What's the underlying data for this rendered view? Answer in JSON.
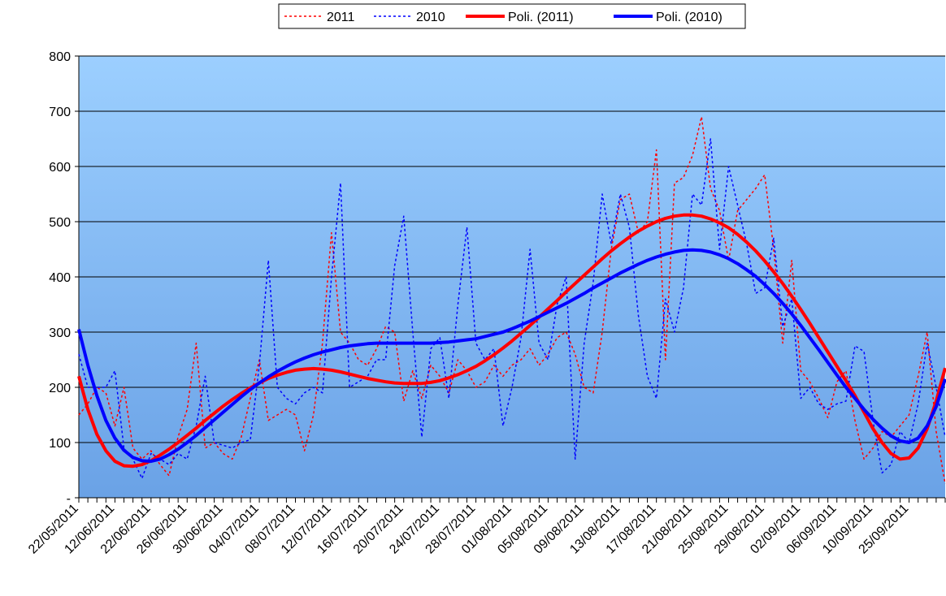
{
  "chart_data": {
    "type": "line",
    "categories": [
      "22/05/2011",
      null,
      null,
      null,
      "12/06/2011",
      null,
      null,
      null,
      "22/06/2011",
      null,
      null,
      null,
      "26/06/2011",
      null,
      null,
      null,
      "30/06/2011",
      null,
      null,
      null,
      "04/07/2011",
      null,
      null,
      null,
      "08/07/2011",
      null,
      null,
      null,
      "12/07/2011",
      null,
      null,
      null,
      "16/07/2011",
      null,
      null,
      null,
      "20/07/2011",
      null,
      null,
      null,
      "24/07/2011",
      null,
      null,
      null,
      "28/07/2011",
      null,
      null,
      null,
      "01/08/2011",
      null,
      null,
      null,
      "05/08/2011",
      null,
      null,
      null,
      "09/08/2011",
      null,
      null,
      null,
      "13/08/2011",
      null,
      null,
      null,
      "17/08/2011",
      null,
      null,
      null,
      "21/08/2011",
      null,
      null,
      null,
      "25/08/2011",
      null,
      null,
      null,
      "29/08/2011",
      null,
      null,
      null,
      "02/09/2011",
      null,
      null,
      null,
      "06/09/2011",
      null,
      null,
      null,
      "10/09/2011",
      null,
      null,
      null,
      "25/09/2011",
      null,
      null,
      null,
      null
    ],
    "series": [
      {
        "name": "2011",
        "color": "#ff0000",
        "line_style": "dotted",
        "values": [
          150,
          170,
          200,
          190,
          130,
          200,
          90,
          70,
          85,
          60,
          40,
          110,
          160,
          280,
          90,
          100,
          80,
          70,
          110,
          180,
          250,
          140,
          150,
          160,
          150,
          85,
          150,
          280,
          480,
          300,
          280,
          250,
          240,
          270,
          310,
          300,
          175,
          230,
          180,
          240,
          220,
          190,
          250,
          230,
          200,
          210,
          240,
          220,
          240,
          250,
          270,
          240,
          260,
          290,
          300,
          260,
          200,
          190,
          300,
          450,
          540,
          550,
          480,
          500,
          630,
          250,
          570,
          580,
          620,
          690,
          560,
          520,
          430,
          520,
          540,
          560,
          585,
          450,
          280,
          430,
          230,
          210,
          180,
          145,
          210,
          230,
          140,
          70,
          90,
          120,
          110,
          130,
          150,
          220,
          300,
          120,
          25
        ]
      },
      {
        "name": "2010",
        "color": "#0000ff",
        "line_style": "dotted",
        "values": [
          260,
          200,
          200,
          200,
          230,
          90,
          70,
          35,
          80,
          70,
          60,
          80,
          70,
          130,
          220,
          100,
          95,
          90,
          100,
          105,
          240,
          430,
          200,
          180,
          170,
          190,
          200,
          190,
          400,
          570,
          200,
          210,
          220,
          250,
          250,
          420,
          510,
          300,
          110,
          270,
          290,
          180,
          350,
          490,
          280,
          250,
          270,
          130,
          200,
          290,
          450,
          280,
          250,
          350,
          400,
          70,
          280,
          390,
          550,
          460,
          550,
          490,
          330,
          220,
          180,
          360,
          300,
          380,
          550,
          530,
          650,
          450,
          600,
          530,
          460,
          370,
          380,
          470,
          310,
          360,
          180,
          200,
          170,
          160,
          170,
          175,
          275,
          265,
          140,
          45,
          60,
          120,
          100,
          170,
          280,
          200,
          110
        ]
      },
      {
        "name": "Poli. (2011)",
        "color": "#ff0000",
        "line_style": "solid",
        "values": [
          220,
          160,
          115,
          85,
          66,
          58,
          57,
          60,
          67,
          77,
          88,
          100,
          113,
          126,
          140,
          153,
          166,
          178,
          189,
          199,
          208,
          216,
          222,
          227,
          231,
          233,
          234,
          233,
          231,
          228,
          224,
          220,
          216,
          213,
          210,
          208,
          207,
          207,
          207,
          209,
          212,
          217,
          223,
          230,
          238,
          248,
          259,
          271,
          284,
          298,
          312,
          327,
          342,
          357,
          373,
          388,
          403,
          418,
          433,
          447,
          460,
          472,
          483,
          492,
          500,
          506,
          510,
          512,
          512,
          510,
          505,
          498,
          489,
          477,
          463,
          447,
          429,
          409,
          388,
          365,
          341,
          316,
          290,
          264,
          238,
          212,
          185,
          155,
          125,
          100,
          80,
          70,
          72,
          90,
          125,
          175,
          235
        ]
      },
      {
        "name": "Poli. (2010)",
        "color": "#0000ff",
        "line_style": "solid",
        "values": [
          305,
          240,
          185,
          140,
          108,
          86,
          73,
          67,
          66,
          70,
          78,
          88,
          100,
          113,
          127,
          141,
          155,
          169,
          183,
          196,
          208,
          219,
          229,
          238,
          246,
          253,
          259,
          264,
          268,
          272,
          275,
          277,
          279,
          280,
          280,
          280,
          280,
          280,
          280,
          280,
          281,
          282,
          284,
          286,
          288,
          292,
          296,
          300,
          306,
          313,
          320,
          328,
          336,
          344,
          352,
          361,
          370,
          380,
          389,
          398,
          407,
          415,
          423,
          430,
          436,
          441,
          445,
          448,
          449,
          448,
          445,
          440,
          433,
          424,
          413,
          401,
          386,
          370,
          352,
          333,
          312,
          290,
          268,
          245,
          222,
          200,
          180,
          160,
          142,
          126,
          112,
          103,
          100,
          108,
          130,
          165,
          215
        ]
      }
    ],
    "ylim": [
      0,
      800
    ],
    "yticks": [
      {
        "value": 0,
        "label": "-"
      },
      100,
      200,
      300,
      400,
      500,
      600,
      700,
      800
    ],
    "grid": true
  }
}
